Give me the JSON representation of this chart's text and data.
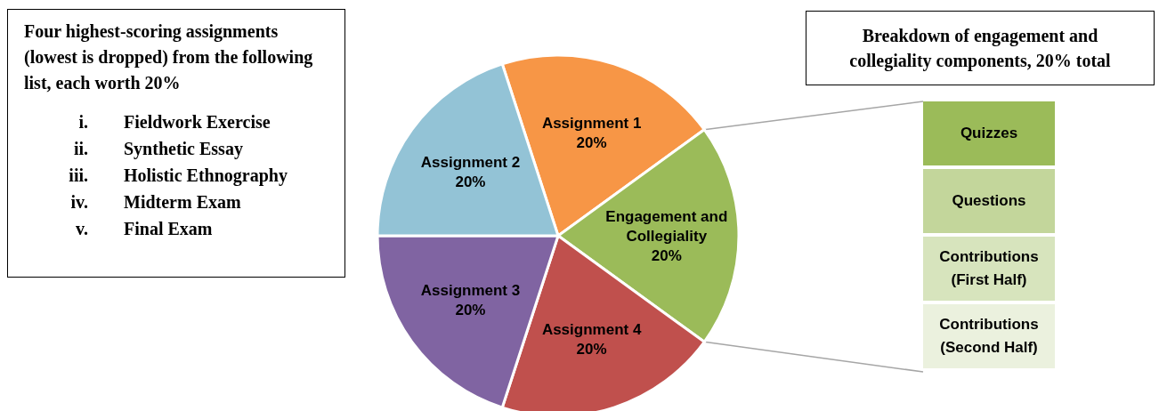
{
  "chart_data": [
    {
      "type": "pie",
      "categories": [
        "Assignment 1",
        "Engagement and Collegiality",
        "Assignment 4",
        "Assignment 3",
        "Assignment 2"
      ],
      "values": [
        20,
        20,
        20,
        20,
        20
      ],
      "colors": [
        "#f79646",
        "#9bbb59",
        "#c0504d",
        "#8064a2",
        "#93c3d6"
      ],
      "value_labels": [
        "20%",
        "20%",
        "20%",
        "20%",
        "20%"
      ],
      "annotations": [
        "Four highest-scoring assignments (lowest is dropped) from the following list, each worth 20%",
        "i. Fieldwork Exercise",
        "ii. Synthetic Essay",
        "iii. Holistic Ethnography",
        "iv. Midterm Exam",
        "v. Final Exam"
      ]
    },
    {
      "type": "other",
      "title": "Breakdown of engagement and collegiality components, 20% total",
      "annotations": [
        "Quizzes",
        "Questions",
        "Contributions (First Half)",
        "Contributions (Second Half)"
      ]
    }
  ]
}
